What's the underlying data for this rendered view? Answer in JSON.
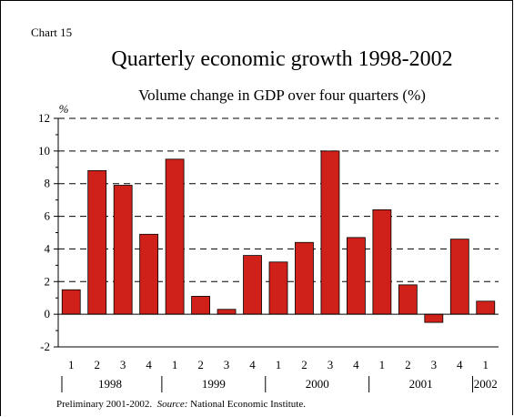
{
  "chart_number": "Chart 15",
  "footnote": {
    "prefix": "Preliminary 2001-2002.",
    "source_label": "Source:",
    "source_text": "National Economic Institute."
  },
  "chart_data": {
    "type": "bar",
    "title": "Quarterly economic growth 1998-2002",
    "subtitle": "Volume change in GDP over four quarters (%)",
    "ylabel": "%",
    "ylim": [
      -2,
      12
    ],
    "yticks": [
      -2,
      0,
      2,
      4,
      6,
      8,
      10,
      12
    ],
    "grid": "horizontal-dashed",
    "bar_color": "#d0201a",
    "categories": [
      "1",
      "2",
      "3",
      "4",
      "1",
      "2",
      "3",
      "4",
      "1",
      "2",
      "3",
      "4",
      "1",
      "2",
      "3",
      "4",
      "1"
    ],
    "years": [
      "1998",
      "1999",
      "2000",
      "2001",
      "2002"
    ],
    "values": [
      1.5,
      8.8,
      7.9,
      4.9,
      9.5,
      1.1,
      0.3,
      3.6,
      3.2,
      4.4,
      10.0,
      4.7,
      6.4,
      1.8,
      -0.5,
      4.6,
      0.8
    ]
  }
}
